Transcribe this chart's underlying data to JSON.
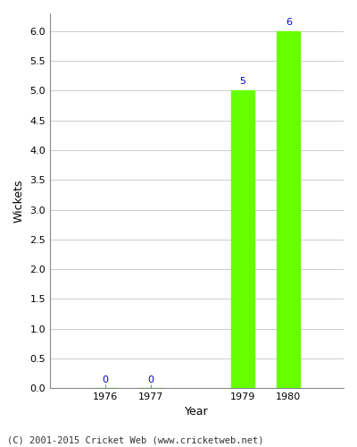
{
  "years": [
    1976,
    1977,
    1979,
    1980
  ],
  "values": [
    0,
    0,
    5,
    6
  ],
  "bar_color": "#66ff00",
  "bar_width": 0.5,
  "xlabel": "Year",
  "ylabel": "Wickets",
  "xlim": [
    1974.8,
    1981.2
  ],
  "ylim": [
    0,
    6.3
  ],
  "yticks": [
    0.0,
    0.5,
    1.0,
    1.5,
    2.0,
    2.5,
    3.0,
    3.5,
    4.0,
    4.5,
    5.0,
    5.5,
    6.0
  ],
  "label_color": "#0000cc",
  "label_fontsize": 8,
  "axis_label_fontsize": 9,
  "tick_fontsize": 8,
  "footer": "(C) 2001-2015 Cricket Web (www.cricketweb.net)",
  "footer_fontsize": 7.5,
  "bg_color": "#ffffff",
  "plot_bg_color": "#ffffff",
  "grid_color": "#cccccc",
  "spine_color": "#888888"
}
